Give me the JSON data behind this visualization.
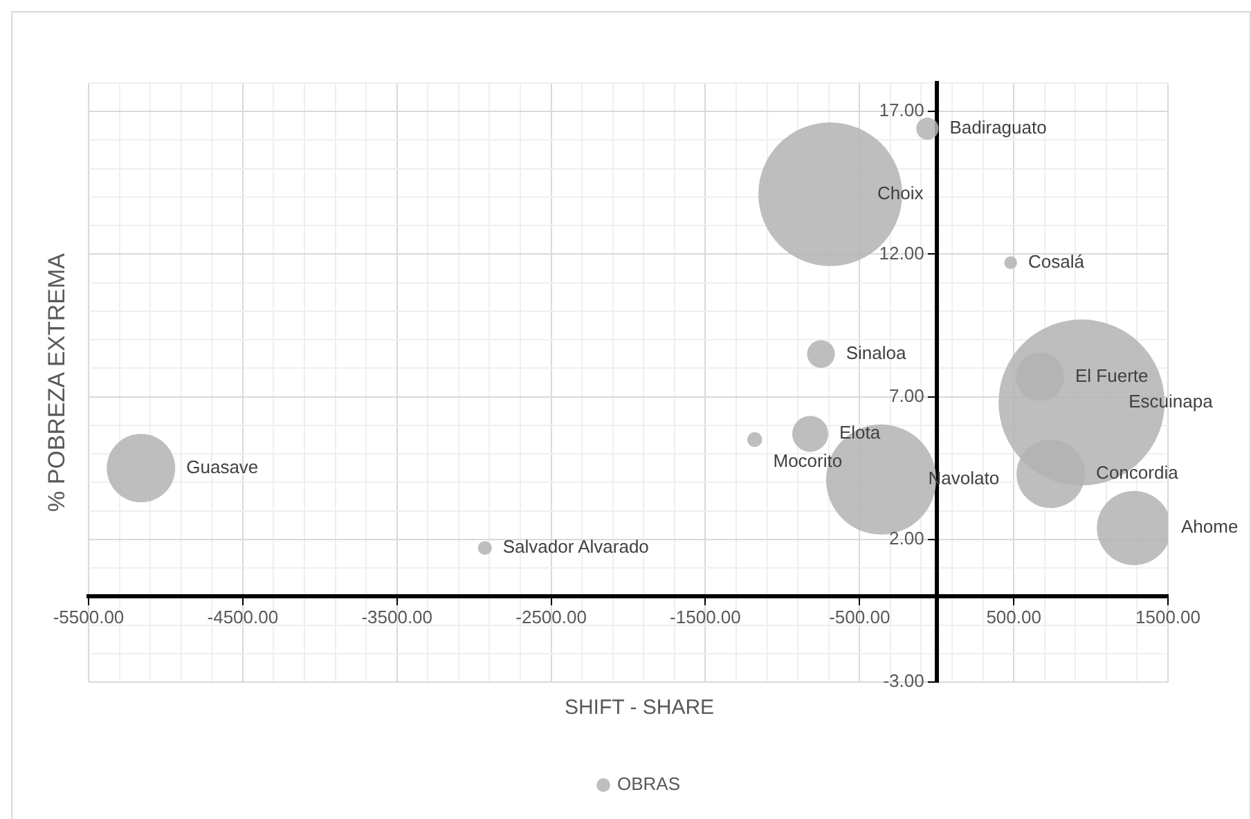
{
  "chart_data": {
    "type": "bubble",
    "xlabel": "SHIFT - SHARE",
    "ylabel": "% POBREZA EXTREMA",
    "series": [
      {
        "name": "OBRAS",
        "color": "#b3b3b3",
        "x": [
          -60,
          -690,
          480,
          -750,
          670,
          940,
          -820,
          -1180,
          -5160,
          -360,
          740,
          1280,
          -2930
        ],
        "values": [
          16.4,
          14.1,
          11.7,
          8.5,
          7.7,
          6.8,
          5.7,
          5.5,
          4.5,
          4.1,
          4.3,
          2.4,
          1.7
        ],
        "sizes": [
          0.018,
          0.75,
          0.006,
          0.028,
          0.085,
          1,
          0.047,
          0.008,
          0.17,
          0.44,
          0.17,
          0.2,
          0.007
        ]
      }
    ],
    "annotations": [
      {
        "text": "Badiraguato",
        "x": -60,
        "y": 16.4
      },
      {
        "text": "Choix",
        "x": -690,
        "y": 14.1
      },
      {
        "text": "Cosalá",
        "x": 480,
        "y": 11.7
      },
      {
        "text": "Sinaloa",
        "x": -750,
        "y": 8.5
      },
      {
        "text": "El Fuerte",
        "x": 670,
        "y": 7.7
      },
      {
        "text": "Escuinapa",
        "x": 940,
        "y": 6.8
      },
      {
        "text": "Elota",
        "x": -820,
        "y": 5.7
      },
      {
        "text": "Mocorito",
        "x": -1180,
        "y": 5.5
      },
      {
        "text": "Guasave",
        "x": -5160,
        "y": 4.5
      },
      {
        "text": "Navolato",
        "x": -360,
        "y": 4.1
      },
      {
        "text": "Concordia",
        "x": 740,
        "y": 4.3
      },
      {
        "text": "Ahome",
        "x": 1280,
        "y": 2.4
      },
      {
        "text": "Salvador Alvarado",
        "x": -2930,
        "y": 1.7
      }
    ],
    "xlim": [
      -5500,
      1500
    ],
    "xticks": [
      {
        "value": -5500,
        "label": "-5500.00"
      },
      {
        "value": -5300,
        "label": null
      },
      {
        "value": -5100,
        "label": null
      },
      {
        "value": -4900,
        "label": null
      },
      {
        "value": -4700,
        "label": null
      },
      {
        "value": -4500,
        "label": "-4500.00"
      },
      {
        "value": -4300,
        "label": null
      },
      {
        "value": -4100,
        "label": null
      },
      {
        "value": -3900,
        "label": null
      },
      {
        "value": -3700,
        "label": null
      },
      {
        "value": -3500,
        "label": "-3500.00"
      },
      {
        "value": -3300,
        "label": null
      },
      {
        "value": -3100,
        "label": null
      },
      {
        "value": -2900,
        "label": null
      },
      {
        "value": -2700,
        "label": null
      },
      {
        "value": -2500,
        "label": "-2500.00"
      },
      {
        "value": -2300,
        "label": null
      },
      {
        "value": -2100,
        "label": null
      },
      {
        "value": -1900,
        "label": null
      },
      {
        "value": -1700,
        "label": null
      },
      {
        "value": -1500,
        "label": "-1500.00"
      },
      {
        "value": -1300,
        "label": null
      },
      {
        "value": -1100,
        "label": null
      },
      {
        "value": -900,
        "label": null
      },
      {
        "value": -700,
        "label": null
      },
      {
        "value": -500,
        "label": "-500.00"
      },
      {
        "value": -300,
        "label": null
      },
      {
        "value": -100,
        "label": null
      },
      {
        "value": 100,
        "label": null
      },
      {
        "value": 300,
        "label": null
      },
      {
        "value": 500,
        "label": "500.00"
      },
      {
        "value": 700,
        "label": null
      },
      {
        "value": 900,
        "label": null
      },
      {
        "value": 1100,
        "label": null
      },
      {
        "value": 1300,
        "label": null
      },
      {
        "value": 1500,
        "label": "1500.00"
      }
    ],
    "ylim": [
      -3,
      18
    ],
    "yticks": [
      {
        "value": -3,
        "label": "-3.00"
      },
      {
        "value": -2,
        "label": null
      },
      {
        "value": -1,
        "label": null
      },
      {
        "value": 0,
        "label": null
      },
      {
        "value": 1,
        "label": null
      },
      {
        "value": 2,
        "label": "2.00"
      },
      {
        "value": 3,
        "label": null
      },
      {
        "value": 4,
        "label": null
      },
      {
        "value": 5,
        "label": null
      },
      {
        "value": 6,
        "label": null
      },
      {
        "value": 7,
        "label": "7.00"
      },
      {
        "value": 8,
        "label": null
      },
      {
        "value": 9,
        "label": null
      },
      {
        "value": 10,
        "label": null
      },
      {
        "value": 11,
        "label": null
      },
      {
        "value": 12,
        "label": "12.00"
      },
      {
        "value": 13,
        "label": null
      },
      {
        "value": 14,
        "label": null
      },
      {
        "value": 15,
        "label": null
      },
      {
        "value": 16,
        "label": null
      },
      {
        "value": 17,
        "label": "17.00"
      },
      {
        "value": 18,
        "label": null
      }
    ],
    "grid": true,
    "legend": "bottom",
    "marker": "circle"
  }
}
